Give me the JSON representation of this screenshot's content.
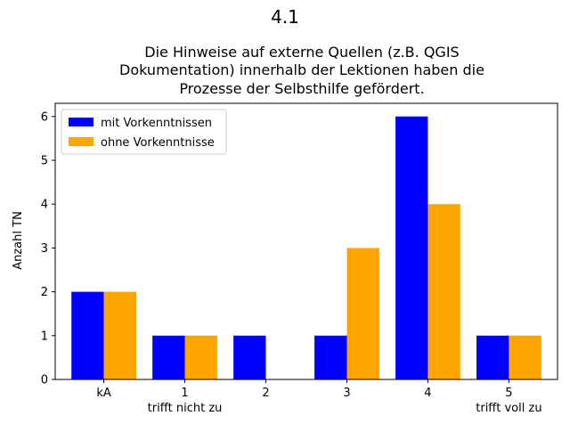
{
  "chart_data": {
    "type": "bar",
    "suptitle": "4.1",
    "title_lines": [
      "Die Hinweise auf externe Quellen (z.B. QGIS",
      "Dokumentation) innerhalb der Lektionen haben die",
      "Prozesse der Selbsthilfe gefördert."
    ],
    "xlabel": "",
    "ylabel": "Anzahl TN",
    "categories": [
      "kA",
      "1",
      "2",
      "3",
      "4",
      "5"
    ],
    "category_sublabels": [
      "",
      "trifft nicht zu",
      "",
      "",
      "",
      "trifft voll zu"
    ],
    "ylim": [
      0,
      6.3
    ],
    "yticks": [
      0,
      1,
      2,
      3,
      4,
      5,
      6
    ],
    "series": [
      {
        "name": "mit Vorkenntnissen",
        "color": "#0000ff",
        "values": [
          2,
          1,
          1,
          1,
          6,
          1
        ]
      },
      {
        "name": "ohne Vorkenntnisse",
        "color": "#ffa500",
        "values": [
          2,
          1,
          0,
          3,
          4,
          1
        ]
      }
    ],
    "legend": "top-left",
    "grid": false
  }
}
